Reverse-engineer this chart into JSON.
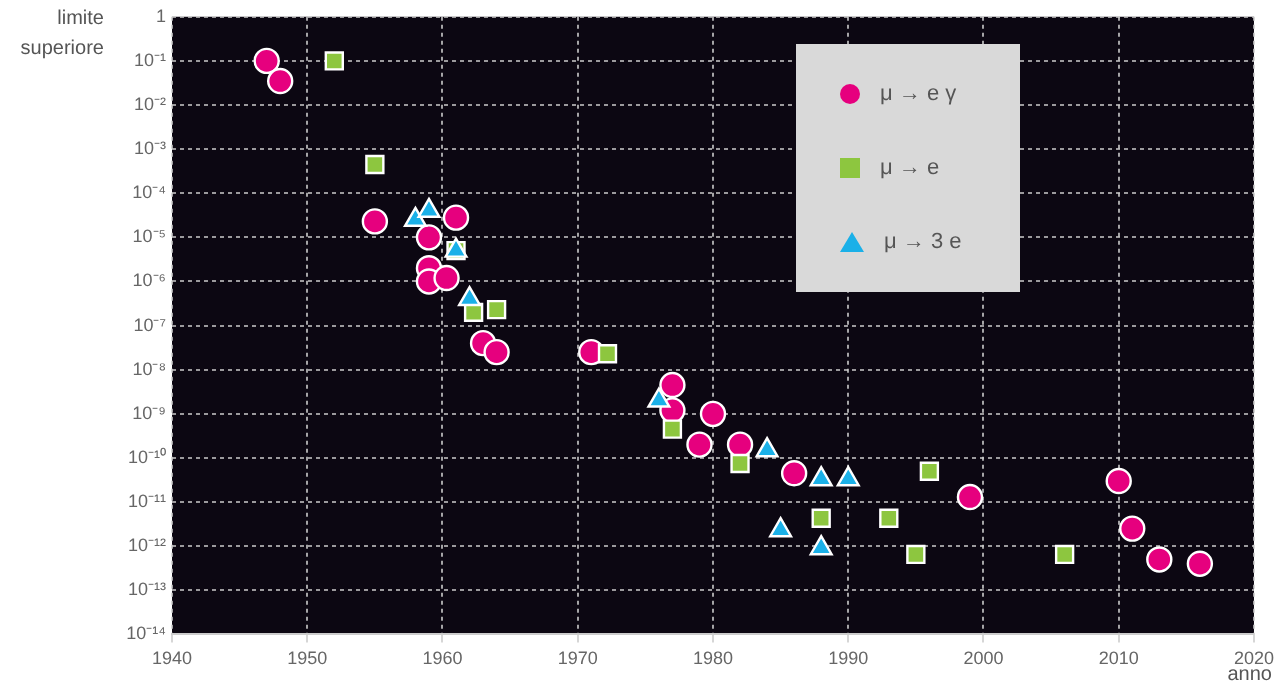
{
  "chart_data": {
    "type": "scatter",
    "xlabel": "anno",
    "ylabel": "limite superiore",
    "log": "y",
    "grid": true,
    "legend": "top right",
    "xlim": [
      1940,
      2020
    ],
    "xticks": [
      1940,
      1950,
      1960,
      1970,
      1980,
      1990,
      2000,
      2010,
      2020
    ],
    "ylim": [
      1e-14,
      1
    ],
    "yticks": [
      {
        "value": 1e-14,
        "label": "10⁻¹⁴"
      },
      {
        "value": 1e-13,
        "label": "10⁻¹³"
      },
      {
        "value": 1e-12,
        "label": "10⁻¹²"
      },
      {
        "value": 1e-11,
        "label": "10⁻¹¹"
      },
      {
        "value": 1e-10,
        "label": "10⁻¹⁰"
      },
      {
        "value": 1e-09,
        "label": "10⁻⁹"
      },
      {
        "value": 1e-08,
        "label": "10⁻⁸"
      },
      {
        "value": 1e-07,
        "label": "10⁻⁷"
      },
      {
        "value": 1e-06,
        "label": "10⁻⁶"
      },
      {
        "value": 1e-05,
        "label": "10⁻⁵"
      },
      {
        "value": 0.0001,
        "label": "10⁻⁴"
      },
      {
        "value": 0.001,
        "label": "10⁻³"
      },
      {
        "value": 0.01,
        "label": "10⁻²"
      },
      {
        "value": 0.1,
        "label": "10⁻¹"
      },
      {
        "value": 1,
        "label": "1"
      }
    ],
    "series": [
      {
        "name": "μ → e γ",
        "color": "#e6007e",
        "marker": "circle",
        "x": [
          1947,
          1948,
          1955,
          1959,
          1961,
          1959,
          1959,
          1960.3,
          1963,
          1964,
          1971,
          1977,
          1977,
          1980,
          1979,
          1982,
          1986,
          1999,
          2010,
          2011,
          2013,
          2016
        ],
        "values": [
          0.1,
          0.035,
          2.3e-05,
          1e-05,
          2.8e-05,
          2e-06,
          1e-06,
          1.2e-06,
          4e-08,
          2.5e-08,
          2.5e-08,
          4.5e-09,
          1.2e-09,
          1e-09,
          2e-10,
          2e-10,
          4.5e-11,
          1.3e-11,
          3e-11,
          2.5e-12,
          5e-13,
          4e-13
        ]
      },
      {
        "name": "μ → e",
        "color": "#8dc63f",
        "marker": "square",
        "x": [
          1952,
          1955,
          1961,
          1962.3,
          1964,
          1972.2,
          1977,
          1982,
          1996,
          1988,
          1993,
          1995,
          2006
        ],
        "values": [
          0.1,
          0.00045,
          5e-06,
          2e-07,
          2.3e-07,
          2.3e-08,
          4.5e-10,
          7.5e-11,
          5e-11,
          4.3e-12,
          4.3e-12,
          6.5e-13,
          6.5e-13
        ]
      },
      {
        "name": "μ → 3 e",
        "color": "#1ab0e8",
        "marker": "triangle",
        "x": [
          1958,
          1959,
          1961,
          1962,
          1976,
          1984,
          1988,
          1990,
          1985,
          1988
        ],
        "values": [
          2.5e-05,
          4e-05,
          5e-06,
          4e-07,
          2e-09,
          1.5e-10,
          3.3e-11,
          3.3e-11,
          2.3e-12,
          9e-13
        ]
      }
    ]
  }
}
